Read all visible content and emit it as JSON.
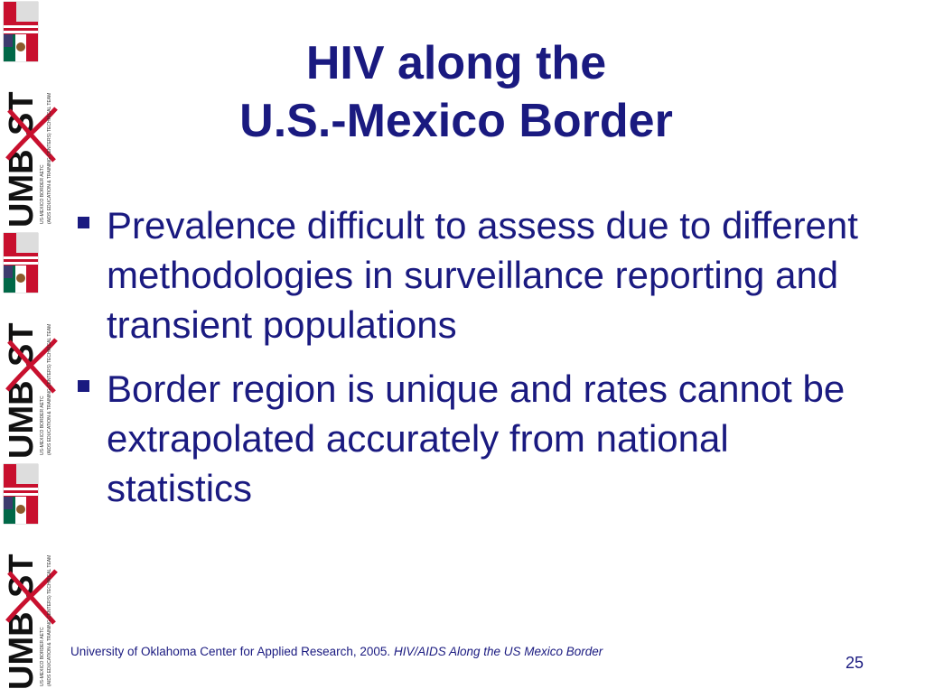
{
  "slide": {
    "title_line1": "HIV along the",
    "title_line2": "U.S.-Mexico Border",
    "bullets": [
      "Prevalence difficult to assess due to different methodologies in surveillance reporting and transient populations",
      "Border region is unique and rates cannot be extrapolated accurately from national statistics"
    ],
    "citation_text": "University of Oklahoma Center for Applied Research, 2005.",
    "citation_title": "HIV/AIDS Along the US Mexico Border",
    "page_number": "25"
  },
  "logo": {
    "wordmark": "UMBRST",
    "sub_text": "(AIDS EDUCATION & TRAINING CENTERS) TECHNICAL TEAM",
    "sub_text2": "US-MEXICO BORDER AETC",
    "flag_colors": [
      "#c8102e",
      "#ffffff",
      "#006847",
      "#3c3b6e"
    ]
  },
  "colors": {
    "text": "#1a1a80",
    "ribbon": "#c8102e"
  }
}
